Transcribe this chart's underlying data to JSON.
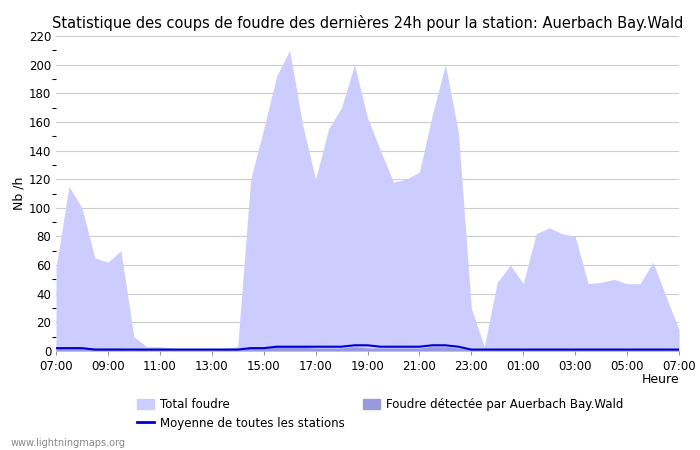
{
  "title": "Statistique des coups de foudre des dernières 24h pour la station: Auerbach Bay.Wald",
  "xlabel": "Heure",
  "ylabel": "Nb /h",
  "xlim": [
    0,
    48
  ],
  "ylim": [
    0,
    220
  ],
  "yticks": [
    0,
    20,
    40,
    60,
    80,
    100,
    120,
    140,
    160,
    180,
    200,
    220
  ],
  "xtick_labels": [
    "07:00",
    "09:00",
    "11:00",
    "13:00",
    "15:00",
    "17:00",
    "19:00",
    "21:00",
    "23:00",
    "01:00",
    "03:00",
    "05:00",
    "07:00"
  ],
  "xtick_positions": [
    0,
    4,
    8,
    12,
    16,
    20,
    24,
    28,
    32,
    36,
    40,
    44,
    48
  ],
  "total_foudre": [
    58,
    115,
    100,
    65,
    62,
    70,
    10,
    3,
    3,
    2,
    2,
    2,
    2,
    2,
    3,
    120,
    155,
    192,
    210,
    158,
    120,
    155,
    170,
    200,
    163,
    140,
    118,
    120,
    125,
    165,
    200,
    153,
    30,
    3,
    48,
    60,
    47,
    82,
    86,
    82,
    80,
    47,
    48,
    50,
    47,
    47,
    62,
    38,
    15
  ],
  "local_foudre": [
    2,
    3,
    2,
    2,
    2,
    2,
    1,
    1,
    1,
    1,
    1,
    1,
    1,
    1,
    1,
    2,
    2,
    3,
    3,
    3,
    2,
    2,
    2,
    3,
    2,
    2,
    2,
    2,
    2,
    3,
    3,
    2,
    1,
    1,
    1,
    1,
    1,
    1,
    1,
    1,
    1,
    1,
    1,
    1,
    1,
    1,
    1,
    1,
    1
  ],
  "moyenne": [
    2,
    2,
    2,
    1,
    1,
    1,
    1,
    1,
    1,
    1,
    1,
    1,
    1,
    1,
    1,
    2,
    2,
    3,
    3,
    3,
    3,
    3,
    3,
    4,
    4,
    3,
    3,
    3,
    3,
    4,
    4,
    3,
    1,
    1,
    1,
    1,
    1,
    1,
    1,
    1,
    1,
    1,
    1,
    1,
    1,
    1,
    1,
    1,
    1
  ],
  "color_total": "#ccccff",
  "color_local": "#9999dd",
  "color_moyenne": "#0000cc",
  "background_color": "#ffffff",
  "grid_color": "#cccccc",
  "watermark": "www.lightningmaps.org",
  "legend_total": "Total foudre",
  "legend_moyenne": "Moyenne de toutes les stations",
  "legend_local": "Foudre détectée par Auerbach Bay.Wald",
  "title_fontsize": 10.5,
  "axis_fontsize": 9,
  "tick_fontsize": 8.5
}
